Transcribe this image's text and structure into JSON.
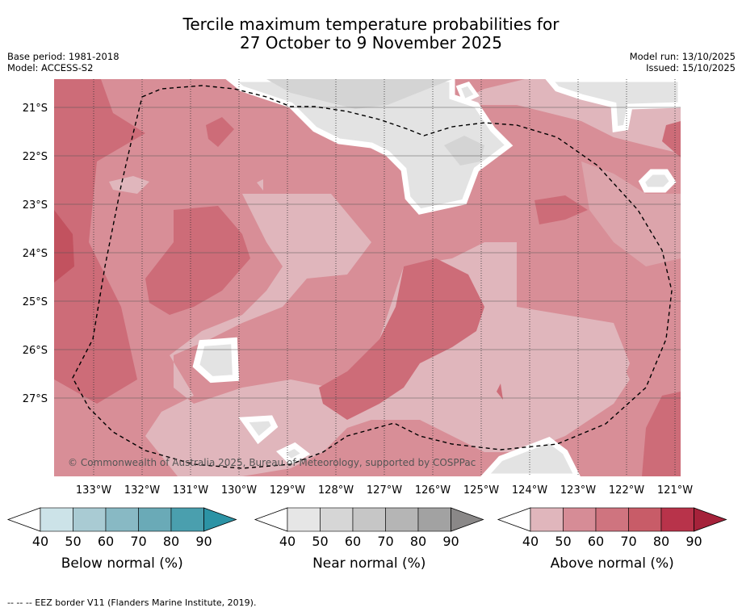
{
  "title_line1": "Tercile maximum temperature probabilities for",
  "title_line2": "27 October to 9 November 2025",
  "base_period": "Base period: 1981-2018",
  "model": "Model: ACCESS-S2",
  "model_run": "Model run: 13/10/2025",
  "issued": "Issued: 15/10/2025",
  "copyright": "© Commonwealth of Australia 2025, Bureau of Meteorology, supported by COSPPac",
  "lat_labels": [
    "21°S",
    "22°S",
    "23°S",
    "24°S",
    "25°S",
    "26°S",
    "27°S"
  ],
  "lon_labels": [
    "133°W",
    "132°W",
    "131°W",
    "130°W",
    "129°W",
    "128°W",
    "127°W",
    "126°W",
    "125°W",
    "124°W",
    "123°W",
    "122°W",
    "121°W"
  ],
  "legends": [
    {
      "title": "Below normal (%)",
      "ticks": [
        "40",
        "50",
        "60",
        "70",
        "80",
        "90"
      ],
      "colors": [
        "#ffffff",
        "#cce3e8",
        "#a9cbd3",
        "#88b9c4",
        "#6aaab7",
        "#4a9fae",
        "#2c93a5"
      ]
    },
    {
      "title": "Near normal (%)",
      "ticks": [
        "40",
        "50",
        "60",
        "70",
        "80",
        "90"
      ],
      "colors": [
        "#ffffff",
        "#e6e6e6",
        "#d6d6d6",
        "#c6c6c6",
        "#b5b5b5",
        "#a2a2a2",
        "#8a8888"
      ]
    },
    {
      "title": "Above normal (%)",
      "ticks": [
        "40",
        "50",
        "60",
        "70",
        "80",
        "90"
      ],
      "colors": [
        "#ffffff",
        "#e0b6bc",
        "#d68c96",
        "#cf747f",
        "#c85c68",
        "#b8334a",
        "#a5223a"
      ]
    }
  ],
  "footnote": "--  --  -- EEZ border V11 (Flanders Marine Institute, 2019).",
  "map_colors": {
    "above_40": "#e0b6bc",
    "above_50": "#d88e97",
    "above_60": "#cd6c78",
    "above_70": "#c2525f",
    "near_40": "#e3e3e3",
    "near_50": "#d4d4d4",
    "border": "#ffffff"
  }
}
